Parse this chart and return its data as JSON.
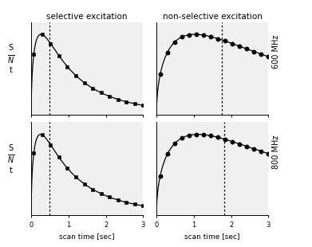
{
  "title_top_left": "selective excitation",
  "title_top_right": "non-selective excitation",
  "xlabel_label": "scan time [sec]",
  "right_label_top": "600 MHz",
  "right_label_bottom": "800 MHz",
  "background_color": "#f0f0f0",
  "sel_600": {
    "T1": 0.32,
    "R2": 0.55,
    "vline": 0.5,
    "npts": 14,
    "t0": 0.07,
    "t1": 3.0
  },
  "nonsel_600": {
    "T1": 1.2,
    "R2": 0.13,
    "vline": 1.75,
    "npts": 16,
    "t0": 0.1,
    "t1": 3.0
  },
  "sel_800": {
    "T1": 0.3,
    "R2": 0.55,
    "vline": 0.48,
    "npts": 14,
    "t0": 0.07,
    "t1": 3.0
  },
  "nonsel_800": {
    "T1": 1.3,
    "R2": 0.12,
    "vline": 1.82,
    "npts": 16,
    "t0": 0.1,
    "t1": 3.0
  }
}
